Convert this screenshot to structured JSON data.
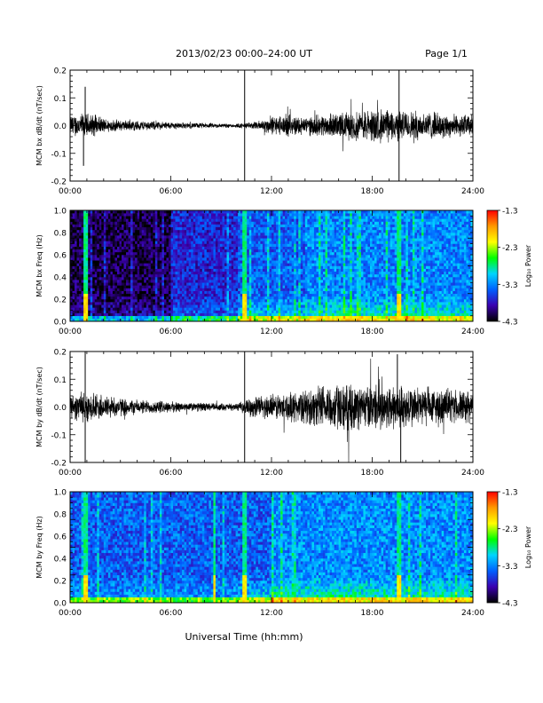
{
  "header": {
    "title": "2013/02/23  00:00–24:00 UT",
    "page": "Page 1/1"
  },
  "x_ticks": [
    "00:00",
    "06:00",
    "12:00",
    "18:00",
    "24:00"
  ],
  "x_label": "Universal Time (hh:mm)",
  "colorbar": {
    "label": "Log₁₀ Power",
    "ticks": [
      "-1.3",
      "-2.3",
      "-3.3",
      "-4.3"
    ],
    "colors": [
      "#ff0000",
      "#ff9900",
      "#ffff00",
      "#00ff00",
      "#00d5ff",
      "#0060ff",
      "#3b00b0",
      "#000000"
    ]
  },
  "chart_data": [
    {
      "type": "line",
      "panel": "bx-waveform",
      "ylabel": "MCM bx dB/dt (nT/sec)",
      "ylim": [
        -0.2,
        0.2
      ],
      "yticks": [
        "0.2",
        "0.1",
        "0.0",
        "-0.1",
        "-0.2"
      ],
      "xlim": [
        0,
        24
      ],
      "envelope": {
        "x": [
          0,
          1,
          2,
          3,
          4,
          5,
          6,
          7,
          8,
          9,
          10,
          11,
          12,
          13,
          14,
          15,
          16,
          17,
          18,
          19,
          20,
          21,
          22,
          23,
          24
        ],
        "y": [
          0.03,
          0.035,
          0.02,
          0.015,
          0.014,
          0.012,
          0.01,
          0.008,
          0.007,
          0.006,
          0.006,
          0.01,
          0.025,
          0.03,
          0.025,
          0.03,
          0.035,
          0.04,
          0.045,
          0.045,
          0.04,
          0.04,
          0.035,
          0.03,
          0.03
        ]
      },
      "spikes": [
        {
          "x": 0.9,
          "y": 0.14
        },
        {
          "x": 0.8,
          "y": -0.145
        },
        {
          "x": 10.4,
          "y": 0.2
        },
        {
          "x": 10.4,
          "y": -0.2
        },
        {
          "x": 19.6,
          "y": 0.2
        },
        {
          "x": 19.6,
          "y": -0.2
        }
      ]
    },
    {
      "type": "heatmap",
      "panel": "bx-spectrogram",
      "ylabel": "MCM bx Freq (Hz)",
      "ylim": [
        0,
        1.0
      ],
      "yticks": [
        "1.0",
        "0.8",
        "0.6",
        "0.4",
        "0.2",
        "0.0"
      ],
      "xlim": [
        0,
        24
      ],
      "color_range": [
        -4.3,
        -1.3
      ],
      "lines": [
        {
          "x": 0.9
        },
        {
          "x": 10.4
        },
        {
          "x": 19.6
        }
      ]
    },
    {
      "type": "line",
      "panel": "by-waveform",
      "ylabel": "MCM by dB/dt (nT/sec)",
      "ylim": [
        -0.2,
        0.2
      ],
      "yticks": [
        "0.2",
        "0.1",
        "0.0",
        "-0.1",
        "-0.2"
      ],
      "xlim": [
        0,
        24
      ],
      "envelope": {
        "x": [
          0,
          1,
          2,
          3,
          4,
          5,
          6,
          7,
          8,
          9,
          10,
          11,
          12,
          13,
          14,
          15,
          16,
          17,
          18,
          19,
          20,
          21,
          22,
          23,
          24
        ],
        "y": [
          0.035,
          0.04,
          0.035,
          0.025,
          0.02,
          0.018,
          0.015,
          0.012,
          0.012,
          0.01,
          0.01,
          0.03,
          0.035,
          0.04,
          0.045,
          0.06,
          0.065,
          0.06,
          0.06,
          0.065,
          0.06,
          0.055,
          0.05,
          0.045,
          0.045
        ]
      },
      "spikes": [
        {
          "x": 0.9,
          "y": 0.2
        },
        {
          "x": 0.9,
          "y": -0.2
        },
        {
          "x": 10.4,
          "y": 0.2
        },
        {
          "x": 10.4,
          "y": -0.2
        },
        {
          "x": 19.5,
          "y": 0.19
        },
        {
          "x": 19.7,
          "y": -0.2
        }
      ]
    },
    {
      "type": "heatmap",
      "panel": "by-spectrogram",
      "ylabel": "MCM by Freq (Hz)",
      "ylim": [
        0,
        1.0
      ],
      "yticks": [
        "1.0",
        "0.8",
        "0.6",
        "0.4",
        "0.2",
        "0.0"
      ],
      "xlim": [
        0,
        24
      ],
      "color_range": [
        -4.3,
        -1.3
      ],
      "lines": [
        {
          "x": 0.9
        },
        {
          "x": 8.6
        },
        {
          "x": 10.4
        },
        {
          "x": 19.6
        }
      ]
    }
  ]
}
